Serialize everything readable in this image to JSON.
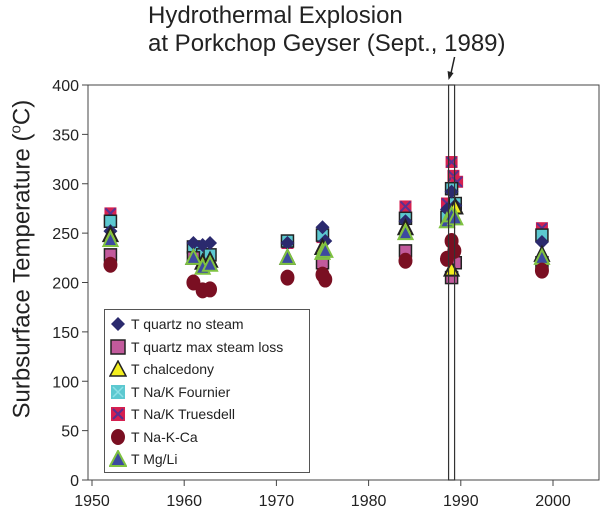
{
  "annotation": {
    "line1": "Hydrothermal Explosion",
    "line2": "at Porkchop Geyser (Sept., 1989)",
    "event_year": 1989
  },
  "chart_data": {
    "type": "scatter",
    "title": "Hydrothermal Explosion at Porkchop Geyser (Sept., 1989)",
    "xlabel": "",
    "ylabel": "Subsurface Temperature (oC)",
    "xlim": [
      1949,
      2004
    ],
    "ylim": [
      0,
      400
    ],
    "xticks": [
      "1950",
      "1960",
      "1970",
      "1980",
      "1990",
      "2000"
    ],
    "yticks": [
      "0",
      "50",
      "100",
      "150",
      "200",
      "250",
      "300",
      "350",
      "400"
    ],
    "grid": false,
    "legend_position": "lower-left inside",
    "series": [
      {
        "name": "T quartz no steam",
        "marker": "diamond",
        "color": "#2b2a6e",
        "x": [
          1952,
          1961,
          1962,
          1962.8,
          1971.2,
          1975,
          1975.3,
          1984,
          1988.5,
          1989,
          1989.4,
          1998.8
        ],
        "y": [
          252,
          240,
          238,
          240,
          240,
          256,
          242,
          262,
          274,
          292,
          278,
          241
        ]
      },
      {
        "name": "T quartz max steam loss",
        "marker": "square",
        "color": "#c25a9c",
        "x": [
          1952,
          1961,
          1975,
          1984,
          1989,
          1989.4,
          1998.8
        ],
        "y": [
          228,
          225,
          220,
          232,
          205,
          220,
          220
        ]
      },
      {
        "name": "T chalcedony",
        "marker": "triangle",
        "color": "#f3ee1e",
        "x": [
          1952,
          1961,
          1962,
          1962.8,
          1971.2,
          1975,
          1984,
          1989,
          1989.4,
          1998.8
        ],
        "y": [
          248,
          225,
          220,
          222,
          225,
          235,
          255,
          213,
          276,
          228
        ]
      },
      {
        "name": "T Na/K Fournier",
        "marker": "square",
        "color": "#5cc8d0",
        "x": [
          1952,
          1961,
          1962,
          1962.8,
          1971.2,
          1975,
          1984,
          1988.5,
          1989,
          1989.4,
          1998.8
        ],
        "y": [
          262,
          236,
          228,
          228,
          242,
          248,
          265,
          266,
          295,
          280,
          248
        ]
      },
      {
        "name": "T Na/K Truesdell",
        "marker": "square-x",
        "color": "#d62050",
        "x": [
          1952,
          1961,
          1971.2,
          1975,
          1984,
          1988.5,
          1989,
          1989.2,
          1989.6,
          1998.8
        ],
        "y": [
          270,
          230,
          240,
          246,
          277,
          280,
          322,
          308,
          302,
          255
        ]
      },
      {
        "name": "T Na-K-Ca",
        "marker": "circle",
        "color": "#7a0f22",
        "x": [
          1952,
          1961,
          1962,
          1962.8,
          1971.2,
          1975,
          1975.3,
          1984,
          1988.5,
          1989,
          1989.3,
          1998.8
        ],
        "y": [
          218,
          200,
          192,
          193,
          205,
          208,
          203,
          222,
          224,
          242,
          232,
          212
        ]
      },
      {
        "name": "T Mg/Li",
        "marker": "triangle",
        "color": "#3d4aa0",
        "edge": "#7fc241",
        "x": [
          1952,
          1961,
          1962,
          1962.8,
          1971.2,
          1975,
          1975.3,
          1984,
          1988.5,
          1989,
          1989.4,
          1998.8
        ],
        "y": [
          243,
          225,
          215,
          218,
          225,
          230,
          232,
          250,
          262,
          268,
          265,
          225
        ]
      }
    ]
  },
  "legend": {
    "items": [
      {
        "label": "T quartz no steam",
        "marker": "diamond"
      },
      {
        "label": "T quartz max steam loss",
        "marker": "square"
      },
      {
        "label": "T chalcedony",
        "marker": "triangle-yellow"
      },
      {
        "label": "T Na/K Fournier",
        "marker": "square-x-cyan"
      },
      {
        "label": "T Na/K Truesdell",
        "marker": "square-x-red"
      },
      {
        "label": "T Na-K-Ca",
        "marker": "circle"
      },
      {
        "label": "T Mg/Li",
        "marker": "triangle-green"
      }
    ]
  }
}
